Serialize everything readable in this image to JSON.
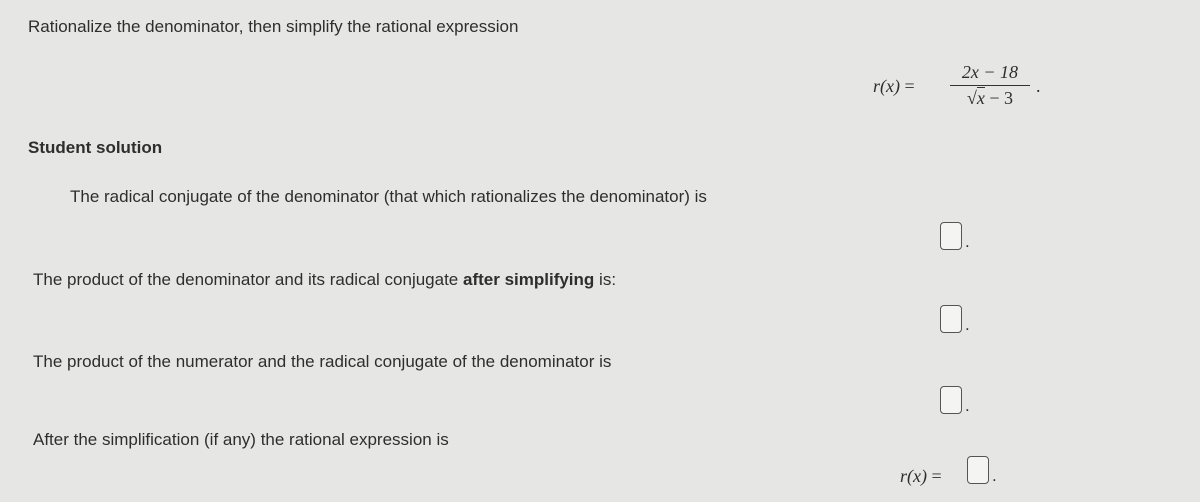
{
  "instructions": "Rationalize the denominator, then simplify the rational expression",
  "expression": {
    "lhs": "r(x)",
    "equals": "=",
    "numerator": "2x − 18",
    "radical": "√",
    "radicand": "x",
    "denominator_rest": "− 3",
    "end": "."
  },
  "section_title": "Student solution",
  "steps": [
    {
      "text": "The radical conjugate of the denominator (that which rationalizes the denominator) is",
      "end": "."
    },
    {
      "text_before": "The product of the denominator and its radical conjugate ",
      "text_bold": "after simplifying",
      "text_after": " is:",
      "end": "."
    },
    {
      "text": "The product of the numerator and the radical conjugate of the denominator is",
      "end": "."
    },
    {
      "text": "After the simplification (if any) the rational expression is",
      "answer_lhs": "r(x)",
      "answer_equals": "=",
      "end": "."
    }
  ]
}
